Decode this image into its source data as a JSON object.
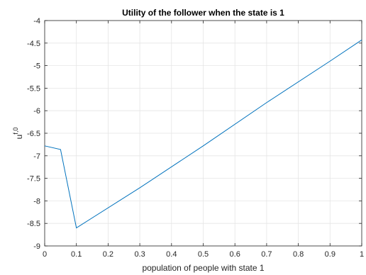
{
  "chart_data": {
    "type": "line",
    "title": "Utility of the follower when the state is 1",
    "xlabel": "population of people with state 1",
    "ylabel_base": "u",
    "ylabel_sup": "f,0",
    "xlim": [
      0,
      1
    ],
    "ylim": [
      -9,
      -4
    ],
    "grid": true,
    "xticks": [
      0,
      0.1,
      0.2,
      0.3,
      0.4,
      0.5,
      0.6,
      0.7,
      0.8,
      0.9,
      1
    ],
    "xtick_labels": [
      "0",
      "0.1",
      "0.2",
      "0.3",
      "0.4",
      "0.5",
      "0.6",
      "0.7",
      "0.8",
      "0.9",
      "1"
    ],
    "yticks": [
      -9,
      -8.5,
      -8,
      -7.5,
      -7,
      -6.5,
      -6,
      -5.5,
      -5,
      -4.5,
      -4
    ],
    "ytick_labels": [
      "-9",
      "-8.5",
      "-8",
      "-7.5",
      "-7",
      "-6.5",
      "-6",
      "-5.5",
      "-5",
      "-4.5",
      "-4"
    ],
    "series": [
      {
        "color": "#0072BD",
        "x": [
          0,
          0.05,
          0.1,
          0.3,
          0.5,
          0.7,
          0.9,
          1
        ],
        "y": [
          -6.78,
          -6.86,
          -8.6,
          -7.71,
          -6.78,
          -5.82,
          -4.9,
          -4.43
        ]
      }
    ]
  }
}
